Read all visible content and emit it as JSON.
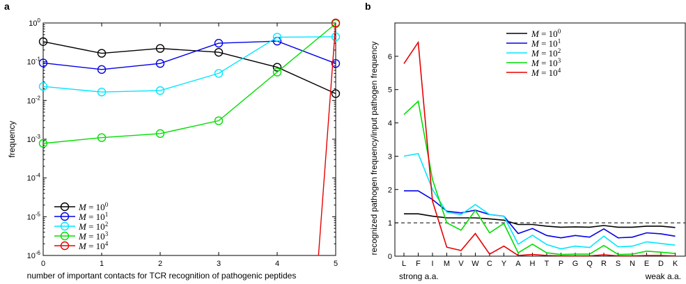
{
  "chart_data": [
    {
      "type": "line",
      "panel_label": "a",
      "xlabel": "number of important contacts for TCR recognition of pathogenic peptides",
      "ylabel": "frequency",
      "x": [
        0,
        1,
        2,
        3,
        4,
        5
      ],
      "xlim": [
        0,
        5
      ],
      "ylim": [
        1e-06,
        1
      ],
      "yscale": "log",
      "x_tick_labels": [
        "0",
        "1",
        "2",
        "3",
        "4",
        "5"
      ],
      "y_tick_labels": [
        {
          "base": "10",
          "exp": "-6"
        },
        {
          "base": "10",
          "exp": "-5"
        },
        {
          "base": "10",
          "exp": "-4"
        },
        {
          "base": "10",
          "exp": "-3"
        },
        {
          "base": "10",
          "exp": "-2"
        },
        {
          "base": "10",
          "exp": "-1"
        },
        {
          "base": "10",
          "exp": "0"
        }
      ],
      "markers": "circle",
      "legend_position": "bottom-left",
      "series": [
        {
          "name": "M = 10^0",
          "label_lhs": "M",
          "label_rhs": "= 10",
          "label_exp": "0",
          "color": "#000000",
          "values": [
            0.33,
            0.165,
            0.22,
            0.175,
            0.072,
            0.015
          ]
        },
        {
          "name": "M = 10^1",
          "label_lhs": "M",
          "label_rhs": "= 10",
          "label_exp": "1",
          "color": "#0000e6",
          "values": [
            0.093,
            0.063,
            0.09,
            0.3,
            0.34,
            0.09
          ]
        },
        {
          "name": "M = 10^2",
          "label_lhs": "M",
          "label_rhs": "= 10",
          "label_exp": "2",
          "color": "#00e6ff",
          "values": [
            0.023,
            0.0165,
            0.018,
            0.05,
            0.43,
            0.44
          ]
        },
        {
          "name": "M = 10^3",
          "label_lhs": "M",
          "label_rhs": "= 10",
          "label_exp": "3",
          "color": "#00dd00",
          "values": [
            0.00078,
            0.0011,
            0.0014,
            0.003,
            0.054,
            0.96
          ]
        },
        {
          "name": "M = 10^4",
          "label_lhs": "M",
          "label_rhs": "= 10",
          "label_exp": "4",
          "color": "#e60000",
          "values": [
            0,
            0,
            0,
            0,
            0,
            1.0
          ]
        }
      ]
    },
    {
      "type": "line",
      "panel_label": "b",
      "ylabel": "recognized pathogen frequency/input pathogen frequency",
      "categories": [
        "L",
        "F",
        "I",
        "M",
        "V",
        "W",
        "C",
        "Y",
        "A",
        "H",
        "T",
        "P",
        "G",
        "Q",
        "R",
        "S",
        "N",
        "E",
        "D",
        "K"
      ],
      "xlabel_left": "strong a.a.",
      "xlabel_right": "weak a.a.",
      "ylim": [
        0,
        7
      ],
      "y_ticks": [
        0,
        1,
        2,
        3,
        4,
        5,
        6
      ],
      "reference_line": {
        "y": 1,
        "style": "dashed"
      },
      "legend_position": "top-center",
      "series": [
        {
          "name": "M = 10^0",
          "label_lhs": "M",
          "label_rhs": "= 10",
          "label_exp": "0",
          "color": "#000000",
          "values": [
            1.27,
            1.27,
            1.2,
            1.15,
            1.15,
            1.15,
            1.12,
            1.08,
            0.95,
            0.95,
            0.9,
            0.87,
            0.88,
            0.87,
            0.92,
            0.87,
            0.87,
            0.9,
            0.9,
            0.86
          ]
        },
        {
          "name": "M = 10^1",
          "label_lhs": "M",
          "label_rhs": "= 10",
          "label_exp": "1",
          "color": "#0000e6",
          "values": [
            1.96,
            1.96,
            1.7,
            1.35,
            1.3,
            1.38,
            1.25,
            1.2,
            0.68,
            0.83,
            0.62,
            0.55,
            0.62,
            0.57,
            0.82,
            0.55,
            0.57,
            0.7,
            0.67,
            0.6
          ]
        },
        {
          "name": "M = 10^2",
          "label_lhs": "M",
          "label_rhs": "= 10",
          "label_exp": "2",
          "color": "#00e6ff",
          "values": [
            3.0,
            3.08,
            2.0,
            1.32,
            1.25,
            1.55,
            1.25,
            1.2,
            0.36,
            0.63,
            0.35,
            0.22,
            0.3,
            0.26,
            0.6,
            0.28,
            0.3,
            0.43,
            0.38,
            0.33
          ]
        },
        {
          "name": "M = 10^3",
          "label_lhs": "M",
          "label_rhs": "= 10",
          "label_exp": "3",
          "color": "#00dd00",
          "values": [
            4.25,
            4.65,
            2.3,
            1.0,
            0.78,
            1.38,
            0.7,
            0.98,
            0.1,
            0.36,
            0.1,
            0.05,
            0.06,
            0.06,
            0.32,
            0.05,
            0.06,
            0.15,
            0.12,
            0.08
          ]
        },
        {
          "name": "M = 10^4",
          "label_lhs": "M",
          "label_rhs": "= 10",
          "label_exp": "4",
          "color": "#e60000",
          "values": [
            5.78,
            6.42,
            1.65,
            0.27,
            0.17,
            0.68,
            0.06,
            0.3,
            0.02,
            0.05,
            0.02,
            0.01,
            0.01,
            0.01,
            0.04,
            0.01,
            0.01,
            0.02,
            0.02,
            0.01
          ]
        }
      ]
    }
  ]
}
